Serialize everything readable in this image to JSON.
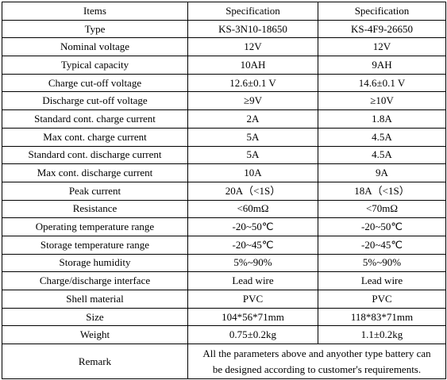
{
  "table": {
    "header": [
      "Items",
      "Specification",
      "Specification"
    ],
    "rows": [
      [
        "Type",
        "KS-3N10-18650",
        "KS-4F9-26650"
      ],
      [
        "Nominal voltage",
        "12V",
        "12V"
      ],
      [
        "Typical capacity",
        "10AH",
        "9AH"
      ],
      [
        "Charge cut-off voltage",
        "12.6±0.1 V",
        "14.6±0.1 V"
      ],
      [
        "Discharge cut-off voltage",
        "≥9V",
        "≥10V"
      ],
      [
        "Standard cont. charge current",
        "2A",
        "1.8A"
      ],
      [
        "Max cont. charge current",
        "5A",
        "4.5A"
      ],
      [
        "Standard cont. discharge current",
        "5A",
        "4.5A"
      ],
      [
        "Max cont. discharge current",
        "10A",
        "9A"
      ],
      [
        "Peak current",
        "20A（<1S）",
        "18A（<1S）"
      ],
      [
        "Resistance",
        "<60mΩ",
        "<70mΩ"
      ],
      [
        "Operating temperature range",
        "-20~50℃",
        "-20~50℃"
      ],
      [
        "Storage temperature range",
        "-20~45℃",
        "-20~45℃"
      ],
      [
        "Storage humidity",
        "5%~90%",
        "5%~90%"
      ],
      [
        "Charge/discharge interface",
        "Lead wire",
        "Lead wire"
      ],
      [
        "Shell material",
        "PVC",
        "PVC"
      ],
      [
        "Size",
        "104*56*71mm",
        "118*83*71mm"
      ],
      [
        "Weight",
        "0.75±0.2kg",
        "1.1±0.2kg"
      ]
    ],
    "remark": {
      "label": "Remark",
      "lines": [
        "All the parameters above and anyother type battery can",
        "be designed according to customer's requirements."
      ]
    }
  }
}
